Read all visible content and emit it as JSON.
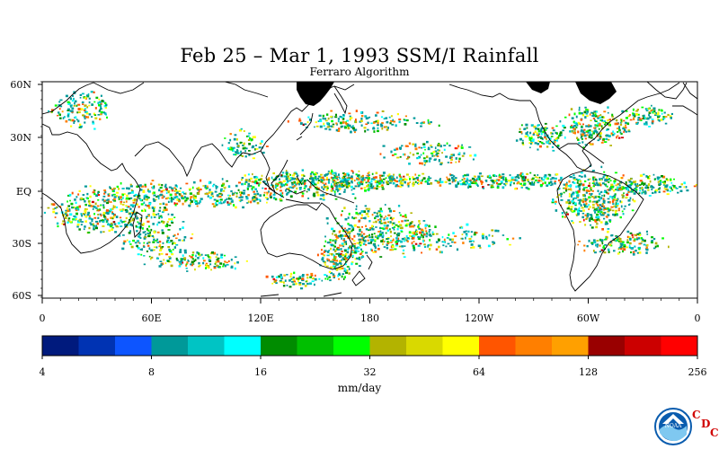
{
  "title": "Feb 25 – Mar 1, 1993 SSM/I Rainfall",
  "subtitle": "Ferraro Algorithm",
  "lat_labels": [
    "60N",
    "30N",
    "EQ",
    "30S",
    "60S"
  ],
  "lon_labels": [
    "0",
    "60E",
    "120E",
    "180",
    "120W",
    "60W",
    "0"
  ],
  "colorbar": {
    "units": "mm/day",
    "tick_labels": [
      "4",
      "8",
      "16",
      "32",
      "64",
      "128",
      "256"
    ],
    "colors": [
      "#001a7d",
      "#0033b3",
      "#0d55ff",
      "#009999",
      "#00c4c4",
      "#00ffff",
      "#008c00",
      "#00bf00",
      "#00ff00",
      "#b3b300",
      "#d9d900",
      "#ffff00",
      "#ff5500",
      "#ff7f00",
      "#ffa000",
      "#990000",
      "#cc0000",
      "#ff0000"
    ]
  },
  "logo": {
    "name": "NOAA",
    "org_letters": [
      "C",
      "D",
      "C"
    ]
  }
}
